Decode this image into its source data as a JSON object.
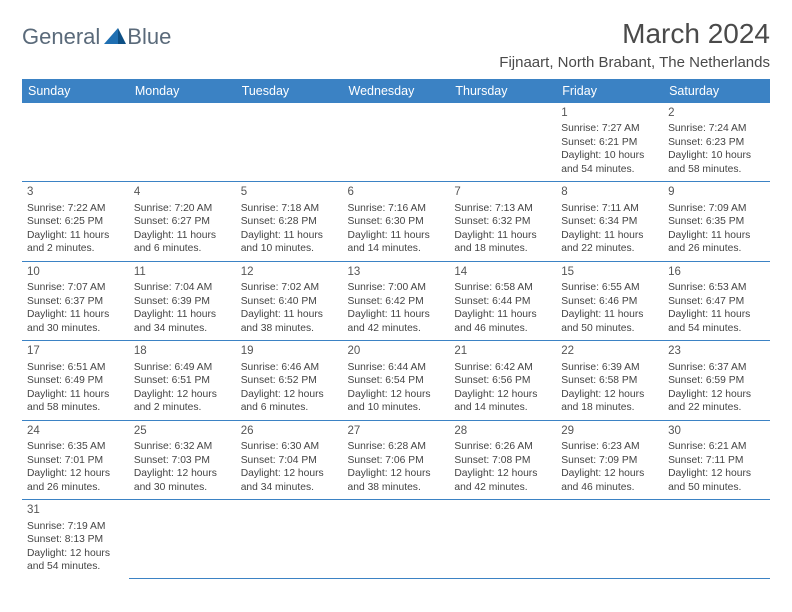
{
  "logo": {
    "part1": "General",
    "part2": "Blue",
    "color1": "#5a6a7a",
    "color2": "#1f6fb2"
  },
  "title": "March 2024",
  "location": "Fijnaart, North Brabant, The Netherlands",
  "colors": {
    "header_bg": "#3b82c4",
    "header_fg": "#ffffff",
    "border": "#3b82c4"
  },
  "dayHeaders": [
    "Sunday",
    "Monday",
    "Tuesday",
    "Wednesday",
    "Thursday",
    "Friday",
    "Saturday"
  ],
  "weeks": [
    [
      null,
      null,
      null,
      null,
      null,
      {
        "n": "1",
        "sr": "Sunrise: 7:27 AM",
        "ss": "Sunset: 6:21 PM",
        "dl": "Daylight: 10 hours and 54 minutes."
      },
      {
        "n": "2",
        "sr": "Sunrise: 7:24 AM",
        "ss": "Sunset: 6:23 PM",
        "dl": "Daylight: 10 hours and 58 minutes."
      }
    ],
    [
      {
        "n": "3",
        "sr": "Sunrise: 7:22 AM",
        "ss": "Sunset: 6:25 PM",
        "dl": "Daylight: 11 hours and 2 minutes."
      },
      {
        "n": "4",
        "sr": "Sunrise: 7:20 AM",
        "ss": "Sunset: 6:27 PM",
        "dl": "Daylight: 11 hours and 6 minutes."
      },
      {
        "n": "5",
        "sr": "Sunrise: 7:18 AM",
        "ss": "Sunset: 6:28 PM",
        "dl": "Daylight: 11 hours and 10 minutes."
      },
      {
        "n": "6",
        "sr": "Sunrise: 7:16 AM",
        "ss": "Sunset: 6:30 PM",
        "dl": "Daylight: 11 hours and 14 minutes."
      },
      {
        "n": "7",
        "sr": "Sunrise: 7:13 AM",
        "ss": "Sunset: 6:32 PM",
        "dl": "Daylight: 11 hours and 18 minutes."
      },
      {
        "n": "8",
        "sr": "Sunrise: 7:11 AM",
        "ss": "Sunset: 6:34 PM",
        "dl": "Daylight: 11 hours and 22 minutes."
      },
      {
        "n": "9",
        "sr": "Sunrise: 7:09 AM",
        "ss": "Sunset: 6:35 PM",
        "dl": "Daylight: 11 hours and 26 minutes."
      }
    ],
    [
      {
        "n": "10",
        "sr": "Sunrise: 7:07 AM",
        "ss": "Sunset: 6:37 PM",
        "dl": "Daylight: 11 hours and 30 minutes."
      },
      {
        "n": "11",
        "sr": "Sunrise: 7:04 AM",
        "ss": "Sunset: 6:39 PM",
        "dl": "Daylight: 11 hours and 34 minutes."
      },
      {
        "n": "12",
        "sr": "Sunrise: 7:02 AM",
        "ss": "Sunset: 6:40 PM",
        "dl": "Daylight: 11 hours and 38 minutes."
      },
      {
        "n": "13",
        "sr": "Sunrise: 7:00 AM",
        "ss": "Sunset: 6:42 PM",
        "dl": "Daylight: 11 hours and 42 minutes."
      },
      {
        "n": "14",
        "sr": "Sunrise: 6:58 AM",
        "ss": "Sunset: 6:44 PM",
        "dl": "Daylight: 11 hours and 46 minutes."
      },
      {
        "n": "15",
        "sr": "Sunrise: 6:55 AM",
        "ss": "Sunset: 6:46 PM",
        "dl": "Daylight: 11 hours and 50 minutes."
      },
      {
        "n": "16",
        "sr": "Sunrise: 6:53 AM",
        "ss": "Sunset: 6:47 PM",
        "dl": "Daylight: 11 hours and 54 minutes."
      }
    ],
    [
      {
        "n": "17",
        "sr": "Sunrise: 6:51 AM",
        "ss": "Sunset: 6:49 PM",
        "dl": "Daylight: 11 hours and 58 minutes."
      },
      {
        "n": "18",
        "sr": "Sunrise: 6:49 AM",
        "ss": "Sunset: 6:51 PM",
        "dl": "Daylight: 12 hours and 2 minutes."
      },
      {
        "n": "19",
        "sr": "Sunrise: 6:46 AM",
        "ss": "Sunset: 6:52 PM",
        "dl": "Daylight: 12 hours and 6 minutes."
      },
      {
        "n": "20",
        "sr": "Sunrise: 6:44 AM",
        "ss": "Sunset: 6:54 PM",
        "dl": "Daylight: 12 hours and 10 minutes."
      },
      {
        "n": "21",
        "sr": "Sunrise: 6:42 AM",
        "ss": "Sunset: 6:56 PM",
        "dl": "Daylight: 12 hours and 14 minutes."
      },
      {
        "n": "22",
        "sr": "Sunrise: 6:39 AM",
        "ss": "Sunset: 6:58 PM",
        "dl": "Daylight: 12 hours and 18 minutes."
      },
      {
        "n": "23",
        "sr": "Sunrise: 6:37 AM",
        "ss": "Sunset: 6:59 PM",
        "dl": "Daylight: 12 hours and 22 minutes."
      }
    ],
    [
      {
        "n": "24",
        "sr": "Sunrise: 6:35 AM",
        "ss": "Sunset: 7:01 PM",
        "dl": "Daylight: 12 hours and 26 minutes."
      },
      {
        "n": "25",
        "sr": "Sunrise: 6:32 AM",
        "ss": "Sunset: 7:03 PM",
        "dl": "Daylight: 12 hours and 30 minutes."
      },
      {
        "n": "26",
        "sr": "Sunrise: 6:30 AM",
        "ss": "Sunset: 7:04 PM",
        "dl": "Daylight: 12 hours and 34 minutes."
      },
      {
        "n": "27",
        "sr": "Sunrise: 6:28 AM",
        "ss": "Sunset: 7:06 PM",
        "dl": "Daylight: 12 hours and 38 minutes."
      },
      {
        "n": "28",
        "sr": "Sunrise: 6:26 AM",
        "ss": "Sunset: 7:08 PM",
        "dl": "Daylight: 12 hours and 42 minutes."
      },
      {
        "n": "29",
        "sr": "Sunrise: 6:23 AM",
        "ss": "Sunset: 7:09 PM",
        "dl": "Daylight: 12 hours and 46 minutes."
      },
      {
        "n": "30",
        "sr": "Sunrise: 6:21 AM",
        "ss": "Sunset: 7:11 PM",
        "dl": "Daylight: 12 hours and 50 minutes."
      }
    ],
    [
      {
        "n": "31",
        "sr": "Sunrise: 7:19 AM",
        "ss": "Sunset: 8:13 PM",
        "dl": "Daylight: 12 hours and 54 minutes."
      },
      null,
      null,
      null,
      null,
      null,
      null
    ]
  ]
}
